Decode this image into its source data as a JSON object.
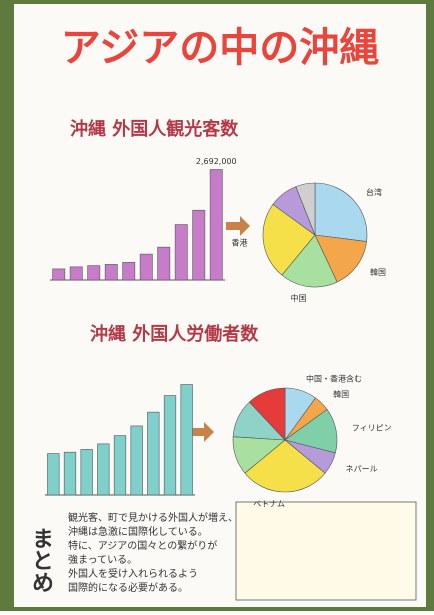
{
  "title": "アジアの中の沖縄",
  "chart_data": [
    {
      "type": "bar",
      "title": "沖縄 外国人観光客数",
      "annotation": "2,692,000",
      "color": "#c77cc9",
      "values": [
        270000,
        320000,
        350000,
        380000,
        430000,
        630000,
        800000,
        1350000,
        1700000,
        2692000
      ]
    },
    {
      "type": "pie",
      "categories": [
        "台湾",
        "韓国",
        "中国",
        "香港",
        null,
        null
      ],
      "values": [
        27,
        16,
        18,
        24,
        9,
        6
      ],
      "colors": [
        "#a9d8ef",
        "#f3a64a",
        "#a8e0a0",
        "#f5e04a",
        "#b69ad9",
        "#cfcfcf"
      ]
    },
    {
      "type": "bar",
      "title": "沖縄 外国人労働者数",
      "color": "#7fcfca",
      "values": [
        3000,
        3100,
        3300,
        3700,
        4300,
        5000,
        6000,
        7200,
        8000
      ]
    },
    {
      "type": "pie",
      "categories": [
        "中国・香港含む",
        "韓国",
        "フィリピン",
        "ネパール",
        "ベトナム",
        null,
        null,
        null
      ],
      "values": [
        10,
        5,
        14,
        7,
        28,
        12,
        12,
        12
      ],
      "colors": [
        "#a9d8ef",
        "#f3a64a",
        "#7fd0a8",
        "#b69ad9",
        "#f5e04a",
        "#a8e0a0",
        "#8fd3c8",
        "#e63b3b"
      ]
    }
  ],
  "summary": {
    "heading": "まとめ",
    "lines": [
      "観光客、町で見かける外国人が増え、",
      "沖縄は急激に国際化している。",
      "特に、アジアの国々との繋がりが",
      "強まっている。",
      "外国人を受け入れられるよう",
      "国際的になる必要がある。"
    ]
  }
}
